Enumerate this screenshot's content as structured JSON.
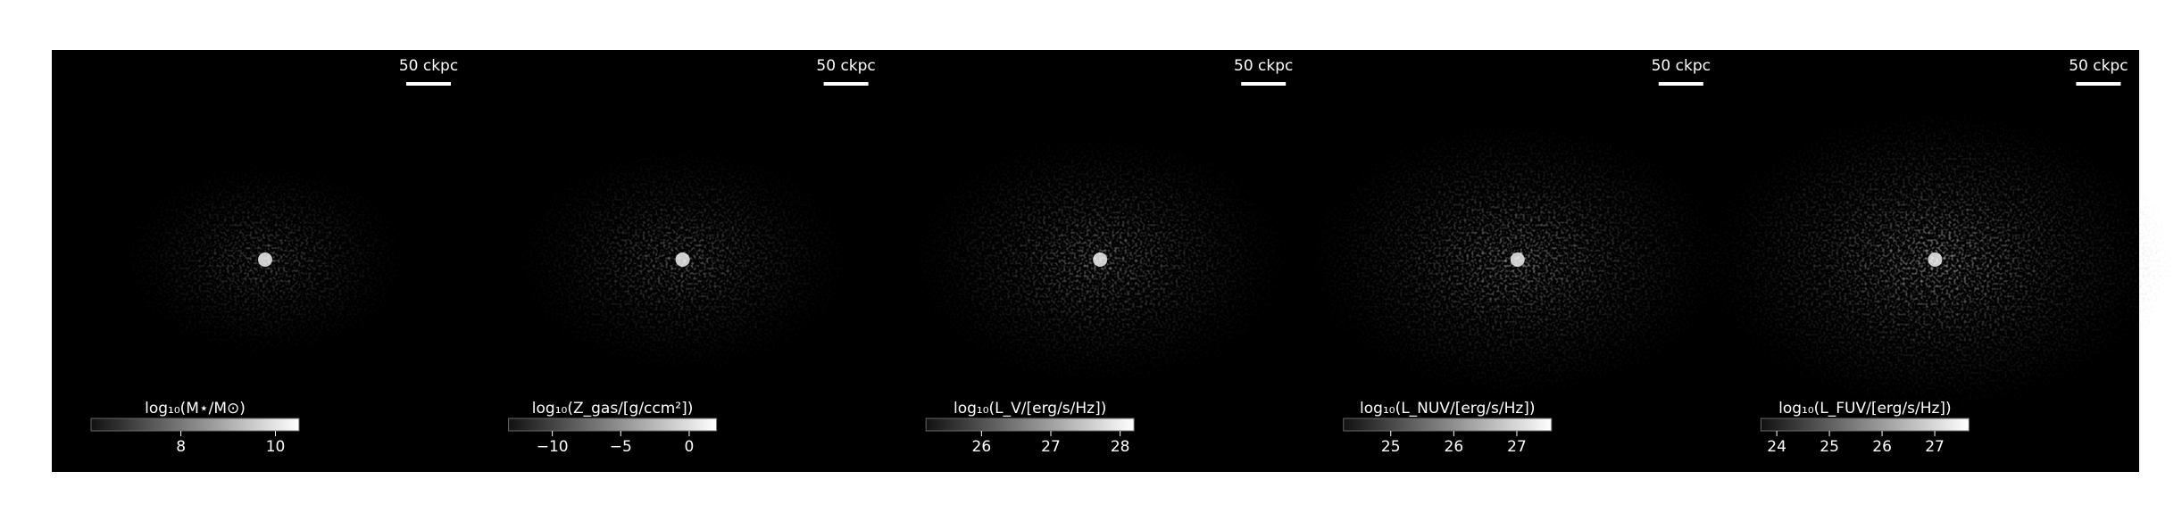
{
  "panels": [
    {
      "scale_label": "50 ckpc",
      "colorbar": {
        "label": "log₁₀(M⋆/M⊙)",
        "lim": [
          6.1,
          10.5
        ],
        "ticks": [
          8,
          10
        ]
      }
    },
    {
      "scale_label": "50 ckpc",
      "colorbar": {
        "label": "log₁₀(Z_gas/[g/ccm²])",
        "lim": [
          -13.2,
          2.0
        ],
        "ticks": [
          {
            "value": -10,
            "label": "−10"
          },
          {
            "value": -5,
            "label": "−5"
          },
          0
        ]
      }
    },
    {
      "scale_label": "50 ckpc",
      "colorbar": {
        "label": "log₁₀(L_V/[erg/s/Hz])",
        "lim": [
          25.2,
          28.2
        ],
        "ticks": [
          26,
          27,
          28
        ]
      }
    },
    {
      "scale_label": "50 ckpc",
      "colorbar": {
        "label": "log₁₀(L_NUV/[erg/s/Hz])",
        "lim": [
          24.25,
          27.55
        ],
        "ticks": [
          25,
          26,
          27
        ]
      }
    },
    {
      "scale_label": "50 ckpc",
      "colorbar": {
        "label": "log₁₀(L_FUV/[erg/s/Hz])",
        "lim": [
          23.7,
          27.65
        ],
        "ticks": [
          24,
          25,
          26,
          27
        ]
      }
    }
  ]
}
